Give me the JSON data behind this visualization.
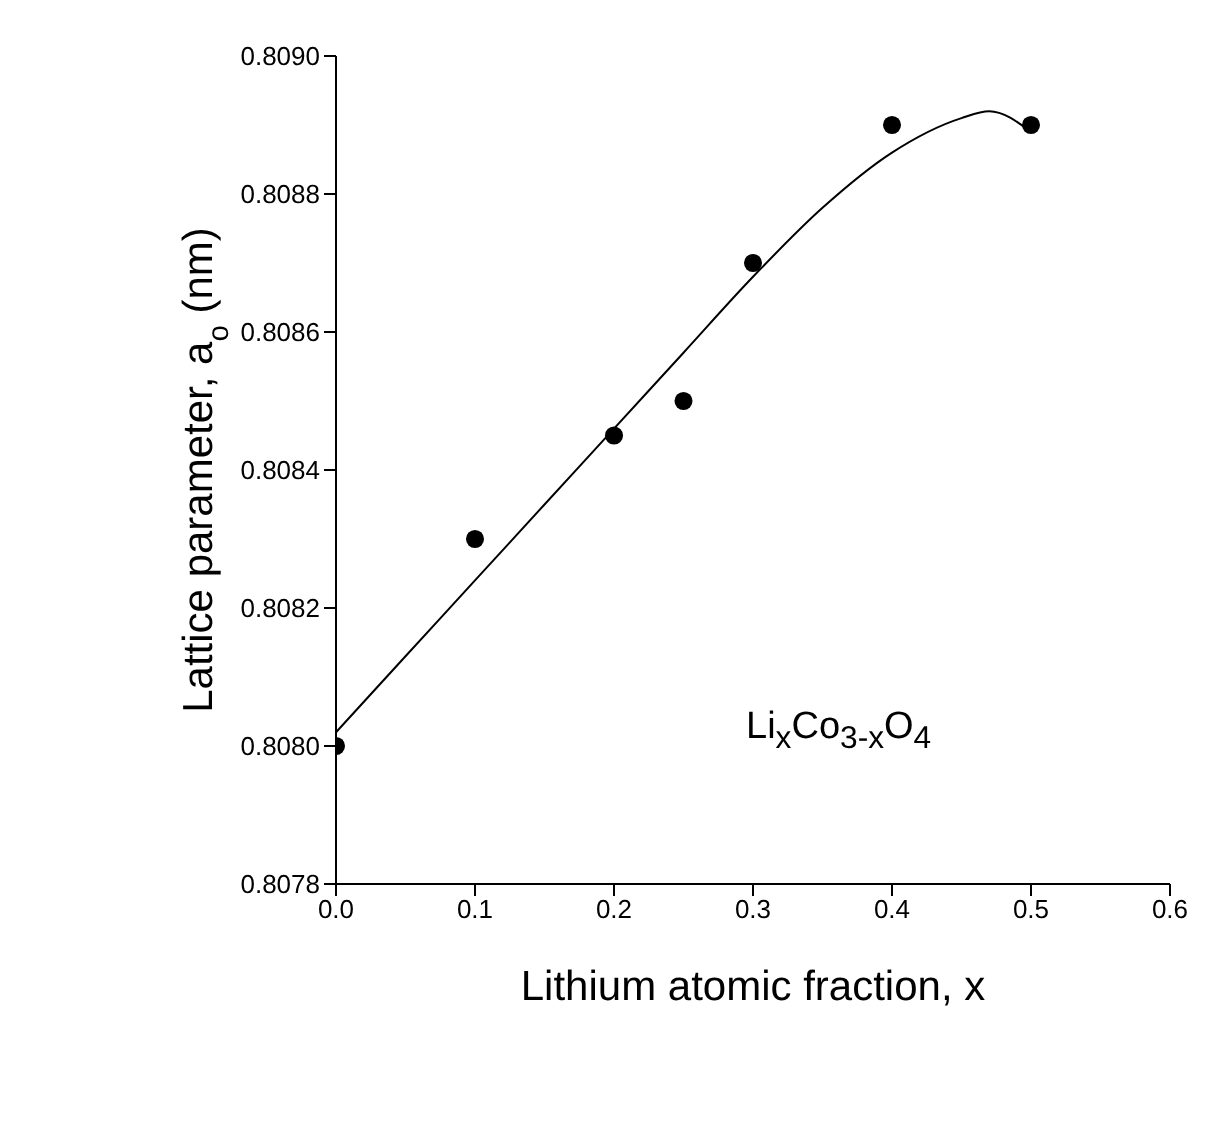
{
  "chart_data": {
    "type": "scatter",
    "xlabel": "Lithium atomic fraction, x",
    "ylabel": "Lattice parameter, a$_{o}$ (nm)",
    "annotations": [
      "Li$_{x}$Co$_{3-x}$O$_{4}$"
    ],
    "xlim": [
      0,
      0.6
    ],
    "xticks": [
      {
        "value": 0,
        "label": "0.0"
      },
      0.1,
      0.2,
      0.3,
      0.4,
      0.5,
      0.6
    ],
    "ylim": [
      0.8078,
      0.809
    ],
    "yticks": [
      0.8078,
      {
        "value": 0.808,
        "label": "0.8080"
      },
      0.8082,
      0.8084,
      0.8086,
      0.8088,
      {
        "value": 0.809,
        "label": "0.8090"
      }
    ],
    "grid": false,
    "legend": false,
    "series": [
      {
        "color": "#000000",
        "marker": "circle",
        "x": [
          0,
          0.1,
          0.2,
          0.25,
          0.3,
          0.4,
          0.5
        ],
        "values": [
          0.808,
          0.8083,
          0.80845,
          0.8085,
          0.8087,
          0.8089,
          0.8089
        ]
      },
      {
        "type": "line",
        "color": "#000000",
        "marker": "none",
        "line_style": "solid",
        "x": [
          0,
          0.05,
          0.1,
          0.15,
          0.2,
          0.25,
          0.3,
          0.35,
          0.4,
          0.45,
          0.47,
          0.5
        ],
        "values": [
          0.80802,
          0.80813,
          0.80824,
          0.80835,
          0.80846,
          0.80857,
          0.80868,
          0.80878,
          0.80886,
          0.80891,
          0.80892,
          0.80889
        ]
      }
    ]
  }
}
